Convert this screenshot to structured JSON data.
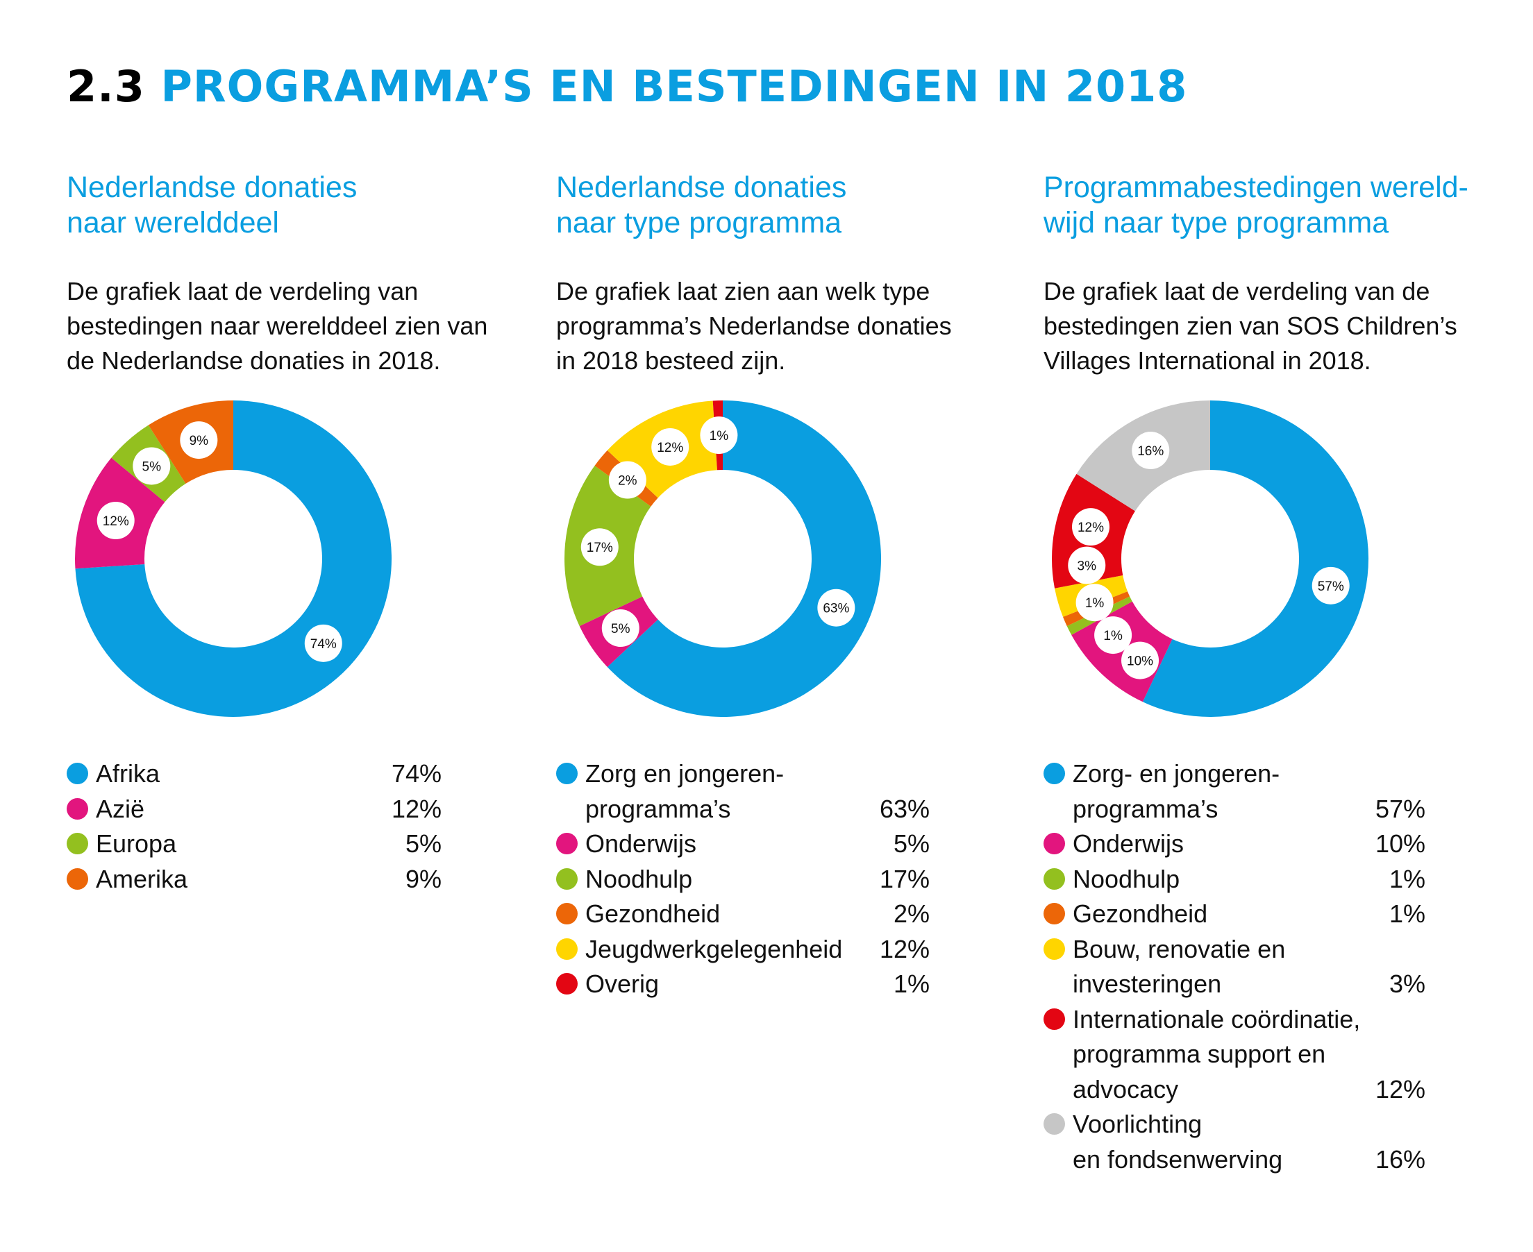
{
  "header": {
    "number": "2.3",
    "title": "PROGRAMMA’S EN BESTEDINGEN IN 2018"
  },
  "charts": [
    {
      "heading": [
        "Nederlandse donaties",
        "naar werelddeel"
      ],
      "description": [
        "De grafiek laat de verdeling van",
        "bestedingen naar werelddeel zien van",
        "de Nederlandse donaties in 2018."
      ],
      "legend": [
        {
          "label": [
            "Afrika"
          ],
          "pct": "74%"
        },
        {
          "label": [
            "Azië"
          ],
          "pct": "12%"
        },
        {
          "label": [
            "Europa"
          ],
          "pct": "5%"
        },
        {
          "label": [
            "Amerika"
          ],
          "pct": "9%"
        }
      ]
    },
    {
      "heading": [
        "Nederlandse donaties",
        "naar type programma"
      ],
      "description": [
        "De grafiek laat zien aan welk type",
        "programma’s Nederlandse donaties",
        "in 2018 besteed zijn."
      ],
      "legend": [
        {
          "label": [
            "Zorg en jongeren-",
            "programma’s"
          ],
          "pct": "63%"
        },
        {
          "label": [
            "Onderwijs"
          ],
          "pct": "5%"
        },
        {
          "label": [
            "Noodhulp"
          ],
          "pct": "17%"
        },
        {
          "label": [
            "Gezondheid"
          ],
          "pct": "2%"
        },
        {
          "label": [
            "Jeugdwerkgelegenheid"
          ],
          "pct": "12%"
        },
        {
          "label": [
            "Overig"
          ],
          "pct": "1%"
        }
      ]
    },
    {
      "heading": [
        "Programmabestedingen wereld-",
        "wijd naar type programma"
      ],
      "description": [
        "De grafiek laat de verdeling van de",
        "bestedingen zien van SOS Children’s",
        "Villages International in 2018."
      ],
      "legend": [
        {
          "label": [
            "Zorg- en jongeren-",
            "programma’s"
          ],
          "pct": "57%"
        },
        {
          "label": [
            "Onderwijs"
          ],
          "pct": "10%"
        },
        {
          "label": [
            "Noodhulp"
          ],
          "pct": "1%"
        },
        {
          "label": [
            "Gezondheid"
          ],
          "pct": "1%"
        },
        {
          "label": [
            "Bouw, renovatie en",
            "investeringen"
          ],
          "pct": "3%"
        },
        {
          "label": [
            "Internationale coördinatie,",
            "programma support en",
            "advocacy"
          ],
          "pct": "12%"
        },
        {
          "label": [
            "Voorlichting",
            "en fondsenwerving"
          ],
          "pct": "16%"
        }
      ]
    }
  ],
  "chart_data": [
    {
      "type": "pie",
      "donut": true,
      "categories": [
        "Afrika",
        "Azië",
        "Europa",
        "Amerika"
      ],
      "values": [
        74,
        12,
        5,
        9
      ],
      "labels": [
        "74%",
        "12%",
        "5%",
        "9%"
      ],
      "colors": [
        "#0a9ee0",
        "#e2157e",
        "#93c01f",
        "#ec6608"
      ],
      "start": "top",
      "direction": "clockwise",
      "legend_position": "bottom"
    },
    {
      "type": "pie",
      "donut": true,
      "categories": [
        "Zorg en jongeren-programma’s",
        "Onderwijs",
        "Noodhulp",
        "Gezondheid",
        "Jeugdwerkgelegenheid",
        "Overig"
      ],
      "values": [
        63,
        5,
        17,
        2,
        12,
        1
      ],
      "labels": [
        "63%",
        "5%",
        "17%",
        "2%",
        "12%",
        "1%"
      ],
      "colors": [
        "#0a9ee0",
        "#e2157e",
        "#93c01f",
        "#ec6608",
        "#ffd500",
        "#e30613"
      ],
      "start": "top",
      "direction": "clockwise",
      "legend_position": "bottom"
    },
    {
      "type": "pie",
      "donut": true,
      "categories": [
        "Zorg- en jongeren-programma’s",
        "Onderwijs",
        "Noodhulp",
        "Gezondheid",
        "Bouw, renovatie en investeringen",
        "Internationale coördinatie, programma support en advocacy",
        "Voorlichting en fondsenwerving"
      ],
      "values": [
        57,
        10,
        1,
        1,
        3,
        12,
        16
      ],
      "labels": [
        "57%",
        "10%",
        "1%",
        "1%",
        "3%",
        "12%",
        "16%"
      ],
      "colors": [
        "#0a9ee0",
        "#e2157e",
        "#93c01f",
        "#ec6608",
        "#ffd500",
        "#e30613",
        "#c6c6c6"
      ],
      "start": "top",
      "direction": "clockwise",
      "legend_position": "bottom"
    }
  ]
}
